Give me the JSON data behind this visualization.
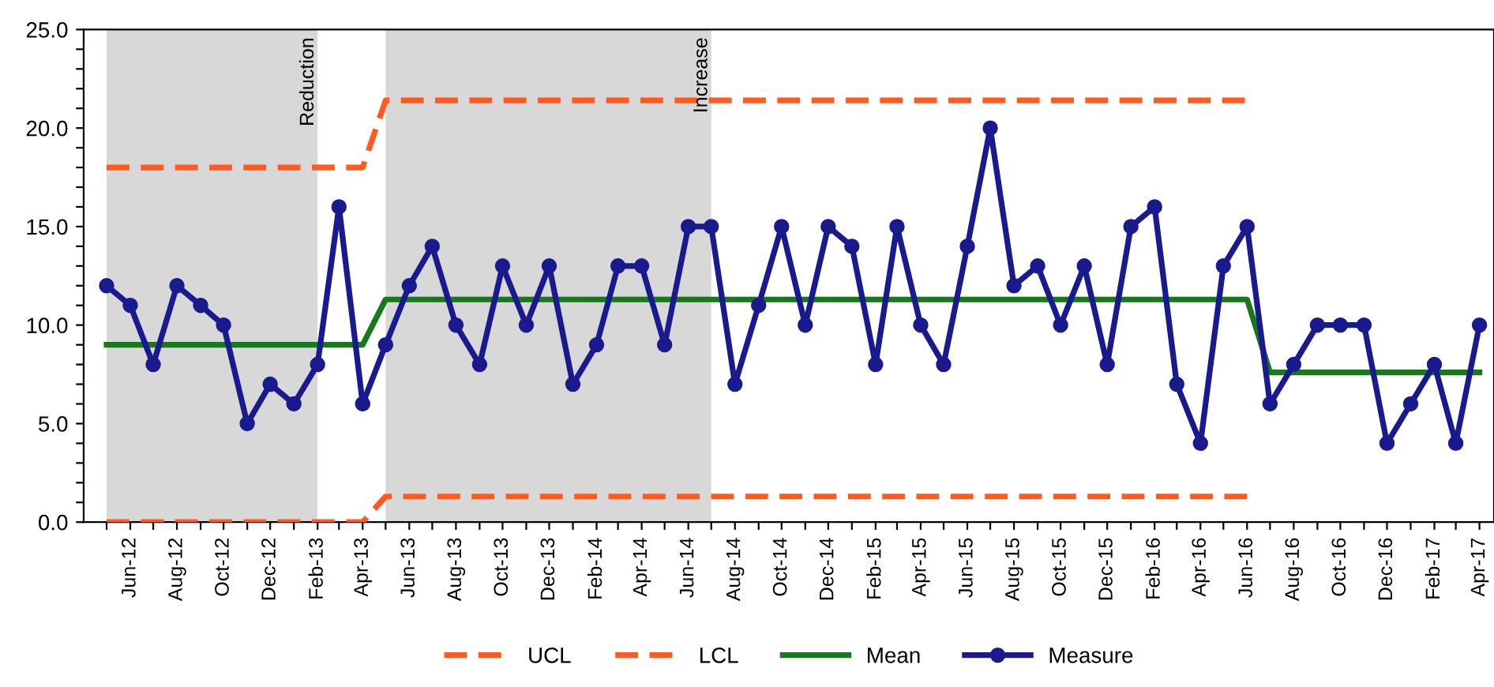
{
  "chart_data": {
    "type": "line",
    "x": [
      "2012-05",
      "2012-06",
      "2012-07",
      "2012-08",
      "2012-09",
      "2012-10",
      "2012-11",
      "2012-12",
      "2013-01",
      "2013-02",
      "2013-03",
      "2013-04",
      "2013-05",
      "2013-06",
      "2013-07",
      "2013-08",
      "2013-09",
      "2013-10",
      "2013-11",
      "2013-12",
      "2014-01",
      "2014-02",
      "2014-03",
      "2014-04",
      "2014-05",
      "2014-06",
      "2014-07",
      "2014-08",
      "2014-09",
      "2014-10",
      "2014-11",
      "2014-12",
      "2015-01",
      "2015-02",
      "2015-03",
      "2015-04",
      "2015-05",
      "2015-06",
      "2015-07",
      "2015-08",
      "2015-09",
      "2015-10",
      "2015-11",
      "2015-12",
      "2016-01",
      "2016-02",
      "2016-03",
      "2016-04",
      "2016-05",
      "2016-06",
      "2016-07",
      "2016-08",
      "2016-09",
      "2016-10",
      "2016-11",
      "2016-12",
      "2017-01",
      "2017-02",
      "2017-03",
      "2017-04"
    ],
    "series": [
      {
        "name": "UCL",
        "color": "#ff5a1f",
        "line_style": "dashed",
        "marker": "none",
        "values": [
          18.0,
          18.0,
          18.0,
          18.0,
          18.0,
          18.0,
          18.0,
          18.0,
          18.0,
          18.0,
          18.0,
          18.0,
          21.4,
          21.4,
          21.4,
          21.4,
          21.4,
          21.4,
          21.4,
          21.4,
          21.4,
          21.4,
          21.4,
          21.4,
          21.4,
          21.4,
          21.4,
          21.4,
          21.4,
          21.4,
          21.4,
          21.4,
          21.4,
          21.4,
          21.4,
          21.4,
          21.4,
          21.4,
          21.4,
          21.4,
          21.4,
          21.4,
          21.4,
          21.4,
          21.4,
          21.4,
          21.4,
          21.4,
          21.4,
          21.4,
          null,
          null,
          null,
          null,
          null,
          null,
          null,
          null,
          null,
          null
        ]
      },
      {
        "name": "LCL",
        "color": "#ff5a1f",
        "line_style": "dashed",
        "marker": "none",
        "values": [
          0.0,
          0.0,
          0.0,
          0.0,
          0.0,
          0.0,
          0.0,
          0.0,
          0.0,
          0.0,
          0.0,
          0.0,
          1.3,
          1.3,
          1.3,
          1.3,
          1.3,
          1.3,
          1.3,
          1.3,
          1.3,
          1.3,
          1.3,
          1.3,
          1.3,
          1.3,
          1.3,
          1.3,
          1.3,
          1.3,
          1.3,
          1.3,
          1.3,
          1.3,
          1.3,
          1.3,
          1.3,
          1.3,
          1.3,
          1.3,
          1.3,
          1.3,
          1.3,
          1.3,
          1.3,
          1.3,
          1.3,
          1.3,
          1.3,
          1.3,
          null,
          null,
          null,
          null,
          null,
          null,
          null,
          null,
          null,
          null
        ]
      },
      {
        "name": "Mean",
        "color": "#17791a",
        "line_style": "solid",
        "marker": "none",
        "values": [
          9.0,
          9.0,
          9.0,
          9.0,
          9.0,
          9.0,
          9.0,
          9.0,
          9.0,
          9.0,
          9.0,
          9.0,
          11.3,
          11.3,
          11.3,
          11.3,
          11.3,
          11.3,
          11.3,
          11.3,
          11.3,
          11.3,
          11.3,
          11.3,
          11.3,
          11.3,
          11.3,
          11.3,
          11.3,
          11.3,
          11.3,
          11.3,
          11.3,
          11.3,
          11.3,
          11.3,
          11.3,
          11.3,
          11.3,
          11.3,
          11.3,
          11.3,
          11.3,
          11.3,
          11.3,
          11.3,
          11.3,
          11.3,
          11.3,
          11.3,
          7.6,
          7.6,
          7.6,
          7.6,
          7.6,
          7.6,
          7.6,
          7.6,
          7.6,
          7.6
        ]
      },
      {
        "name": "Measure",
        "color": "#1a1a8f",
        "line_style": "solid",
        "marker": "circle",
        "values": [
          12,
          11,
          8,
          12,
          11,
          10,
          5,
          7,
          6,
          8,
          16,
          6,
          9,
          12,
          14,
          10,
          8,
          13,
          10,
          13,
          7,
          9,
          13,
          13,
          9,
          15,
          15,
          7,
          11,
          15,
          10,
          15,
          14,
          8,
          15,
          10,
          8,
          14,
          20,
          12,
          13,
          10,
          13,
          8,
          15,
          16,
          7,
          4,
          13,
          15,
          6,
          8,
          10,
          10,
          10,
          4,
          6,
          8,
          4,
          10
        ]
      }
    ],
    "bands": [
      {
        "axis": "x",
        "from": "2012-05",
        "to": "2013-02",
        "label": "Reduction",
        "color": "#d8d8d8"
      },
      {
        "axis": "x",
        "from": "2013-05",
        "to": "2014-07",
        "label": "Increase",
        "color": "#d8d8d8"
      }
    ],
    "xlim": [
      "2012-04",
      "2017-04-20"
    ],
    "xticks": [
      {
        "value": "2012-05",
        "label": null
      },
      {
        "value": "2012-06",
        "label": "Jun-12"
      },
      {
        "value": "2012-07",
        "label": null
      },
      {
        "value": "2012-08",
        "label": "Aug-12"
      },
      {
        "value": "2012-09",
        "label": null
      },
      {
        "value": "2012-10",
        "label": "Oct-12"
      },
      {
        "value": "2012-11",
        "label": null
      },
      {
        "value": "2012-12",
        "label": "Dec-12"
      },
      {
        "value": "2013-01",
        "label": null
      },
      {
        "value": "2013-02",
        "label": "Feb-13"
      },
      {
        "value": "2013-03",
        "label": null
      },
      {
        "value": "2013-04",
        "label": "Apr-13"
      },
      {
        "value": "2013-05",
        "label": null
      },
      {
        "value": "2013-06",
        "label": "Jun-13"
      },
      {
        "value": "2013-07",
        "label": null
      },
      {
        "value": "2013-08",
        "label": "Aug-13"
      },
      {
        "value": "2013-09",
        "label": null
      },
      {
        "value": "2013-10",
        "label": "Oct-13"
      },
      {
        "value": "2013-11",
        "label": null
      },
      {
        "value": "2013-12",
        "label": "Dec-13"
      },
      {
        "value": "2014-01",
        "label": null
      },
      {
        "value": "2014-02",
        "label": "Feb-14"
      },
      {
        "value": "2014-03",
        "label": null
      },
      {
        "value": "2014-04",
        "label": "Apr-14"
      },
      {
        "value": "2014-05",
        "label": null
      },
      {
        "value": "2014-06",
        "label": "Jun-14"
      },
      {
        "value": "2014-07",
        "label": null
      },
      {
        "value": "2014-08",
        "label": "Aug-14"
      },
      {
        "value": "2014-09",
        "label": null
      },
      {
        "value": "2014-10",
        "label": "Oct-14"
      },
      {
        "value": "2014-11",
        "label": null
      },
      {
        "value": "2014-12",
        "label": "Dec-14"
      },
      {
        "value": "2015-01",
        "label": null
      },
      {
        "value": "2015-02",
        "label": "Feb-15"
      },
      {
        "value": "2015-03",
        "label": null
      },
      {
        "value": "2015-04",
        "label": "Apr-15"
      },
      {
        "value": "2015-05",
        "label": null
      },
      {
        "value": "2015-06",
        "label": "Jun-15"
      },
      {
        "value": "2015-07",
        "label": null
      },
      {
        "value": "2015-08",
        "label": "Aug-15"
      },
      {
        "value": "2015-09",
        "label": null
      },
      {
        "value": "2015-10",
        "label": "Oct-15"
      },
      {
        "value": "2015-11",
        "label": null
      },
      {
        "value": "2015-12",
        "label": "Dec-15"
      },
      {
        "value": "2016-01",
        "label": null
      },
      {
        "value": "2016-02",
        "label": "Feb-16"
      },
      {
        "value": "2016-03",
        "label": null
      },
      {
        "value": "2016-04",
        "label": "Apr-16"
      },
      {
        "value": "2016-05",
        "label": null
      },
      {
        "value": "2016-06",
        "label": "Jun-16"
      },
      {
        "value": "2016-07",
        "label": null
      },
      {
        "value": "2016-08",
        "label": "Aug-16"
      },
      {
        "value": "2016-09",
        "label": null
      },
      {
        "value": "2016-10",
        "label": "Oct-16"
      },
      {
        "value": "2016-11",
        "label": null
      },
      {
        "value": "2016-12",
        "label": "Dec-16"
      },
      {
        "value": "2017-01",
        "label": null
      },
      {
        "value": "2017-02",
        "label": "Feb-17"
      },
      {
        "value": "2017-03",
        "label": null
      },
      {
        "value": "2017-04",
        "label": "Apr-17"
      }
    ],
    "ylim": [
      0,
      25
    ],
    "yticks": [
      {
        "value": 0,
        "label": "0.0"
      },
      {
        "value": 1,
        "label": null
      },
      {
        "value": 2,
        "label": null
      },
      {
        "value": 3,
        "label": null
      },
      {
        "value": 4,
        "label": null
      },
      {
        "value": 5,
        "label": "5.0"
      },
      {
        "value": 6,
        "label": null
      },
      {
        "value": 7,
        "label": null
      },
      {
        "value": 8,
        "label": null
      },
      {
        "value": 9,
        "label": null
      },
      {
        "value": 10,
        "label": "10.0"
      },
      {
        "value": 11,
        "label": null
      },
      {
        "value": 12,
        "label": null
      },
      {
        "value": 13,
        "label": null
      },
      {
        "value": 14,
        "label": null
      },
      {
        "value": 15,
        "label": "15.0"
      },
      {
        "value": 16,
        "label": null
      },
      {
        "value": 17,
        "label": null
      },
      {
        "value": 18,
        "label": null
      },
      {
        "value": 19,
        "label": null
      },
      {
        "value": 20,
        "label": "20.0"
      },
      {
        "value": 21,
        "label": null
      },
      {
        "value": 22,
        "label": null
      },
      {
        "value": 23,
        "label": null
      },
      {
        "value": 24,
        "label": null
      },
      {
        "value": 25,
        "label": "25.0"
      }
    ],
    "grid": false,
    "legend": "bottom"
  }
}
